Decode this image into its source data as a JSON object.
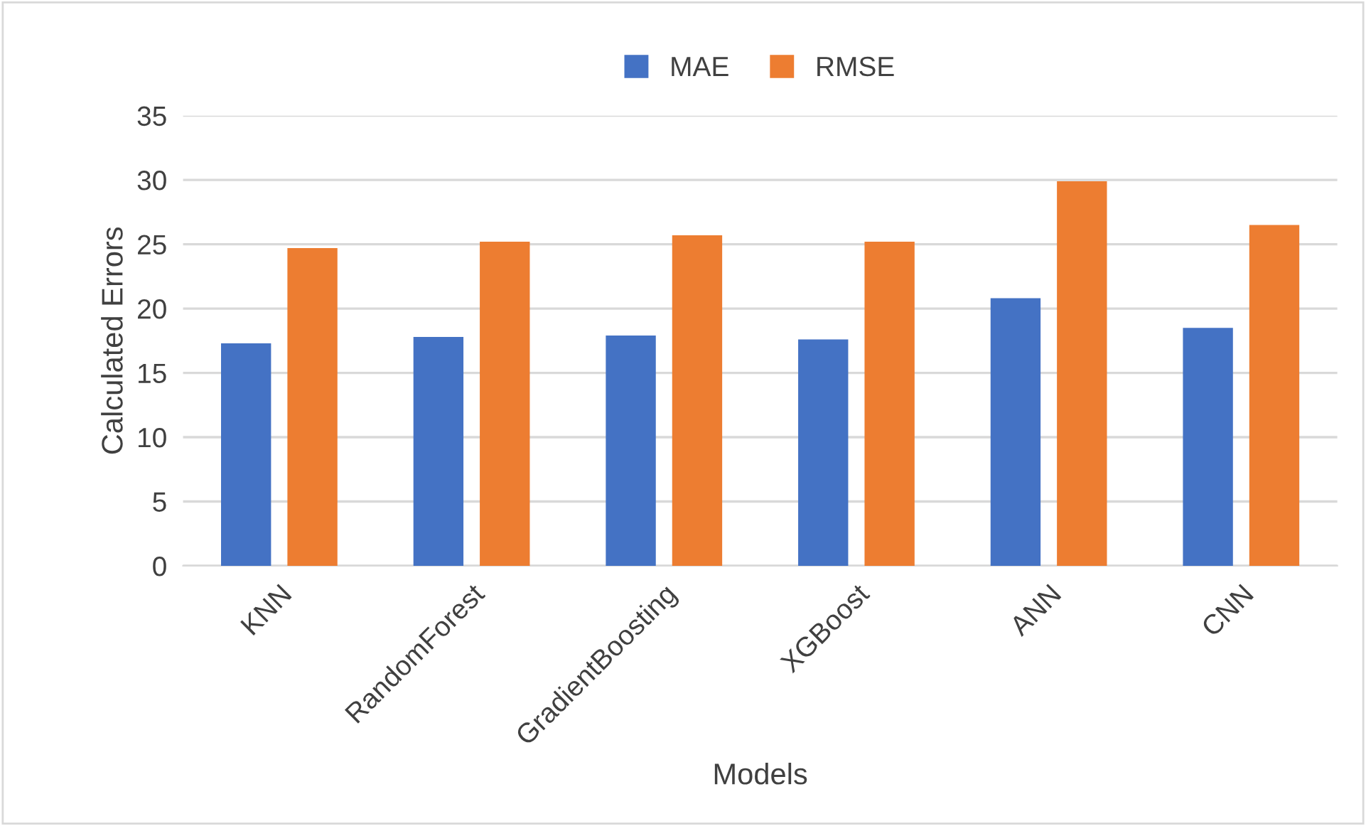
{
  "chart_data": {
    "type": "bar",
    "xlabel": "Models",
    "ylabel": "Calculated Errors",
    "categories": [
      "KNN",
      "RandomForest",
      "GradientBoosting",
      "XGBoost",
      "ANN",
      "CNN"
    ],
    "series": [
      {
        "name": "MAE",
        "color": "#4472c4",
        "values": [
          17.3,
          17.8,
          17.9,
          17.6,
          20.8,
          18.5
        ]
      },
      {
        "name": "RMSE",
        "color": "#ed7d31",
        "values": [
          24.7,
          25.2,
          25.7,
          25.2,
          29.9,
          26.5
        ]
      }
    ],
    "ylim": [
      0,
      35
    ],
    "yticks": [
      0,
      5,
      10,
      15,
      20,
      25,
      30,
      35
    ],
    "grid": "y",
    "legend": "top"
  }
}
